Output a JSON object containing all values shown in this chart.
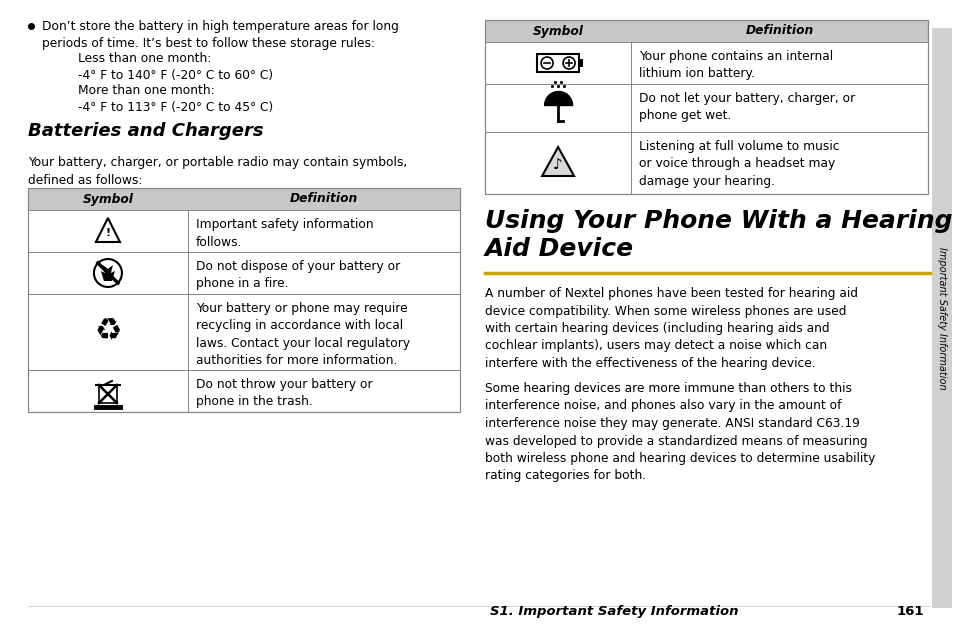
{
  "bg_color": "#ffffff",
  "header_bg": "#c8c8c8",
  "table_border": "#888888",
  "yellow_line": "#c8a800",
  "text_color": "#000000",
  "sidebar_text": "Important Safety Information",
  "footer_text": "S1. Important Safety Information",
  "footer_page": "161",
  "left_bullet": "Don’t store the battery in high temperature areas for long\nperiods of time. It’s best to follow these storage rules:",
  "sub1": "Less than one month:\n-4° F to 140° F (-20° C to 60° C)",
  "sub2": "More than one month:\n-4° F to 113° F (-20° C to 45° C)",
  "section_title_left": "Batteries and Chargers",
  "section_intro_left": "Your battery, charger, or portable radio may contain symbols,\ndefined as follows:",
  "table_header": [
    "Symbol",
    "Definition"
  ],
  "left_rows_def": [
    "Important safety information\nfollows.",
    "Do not dispose of your battery or\nphone in a fire.",
    "Your battery or phone may require\nrecycling in accordance with local\nlaws. Contact your local regulatory\nauthorities for more information.",
    "Do not throw your battery or\nphone in the trash."
  ],
  "right_rows_def": [
    "Your phone contains an internal\nlithium ion battery.",
    "Do not let your battery, charger, or\nphone get wet.",
    "Listening at full volume to music\nor voice through a headset may\ndamage your hearing."
  ],
  "section_title_right_line1": "Using Your Phone With a Hearing",
  "section_title_right_line2": "Aid Device",
  "para1": "A number of Nextel phones have been tested for hearing aid\ndevice compatibility. When some wireless phones are used\nwith certain hearing devices (including hearing aids and\ncochlear implants), users may detect a noise which can\ninterfere with the effectiveness of the hearing device.",
  "para2": "Some hearing devices are more immune than others to this\ninterference noise, and phones also vary in the amount of\ninterference noise they may generate. ANSI standard C63.19\nwas developed to provide a standardized means of measuring\nboth wireless phone and hearing devices to determine usability\nrating categories for both."
}
